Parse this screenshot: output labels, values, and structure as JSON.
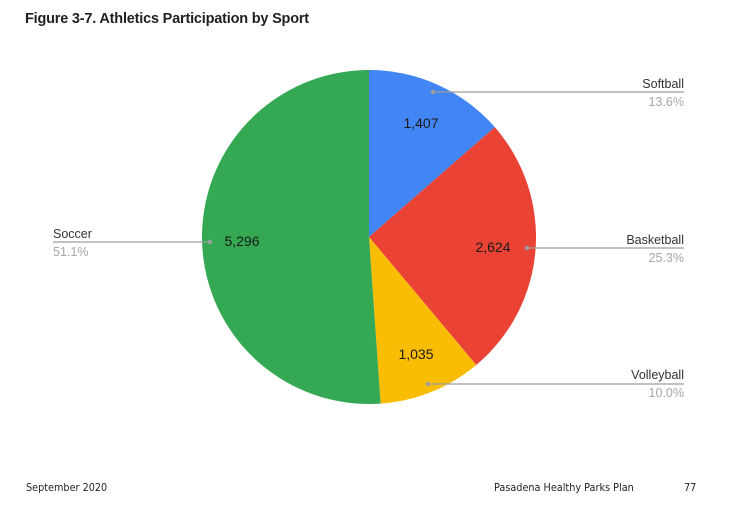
{
  "title": "Figure 3-7. Athletics Participation by Sport",
  "footer": {
    "date": "September 2020",
    "document": "Pasadena Healthy Parks Plan",
    "page": "77"
  },
  "chart_data": {
    "type": "pie",
    "title": "Figure 3-7. Athletics Participation by Sport",
    "categories": [
      "Softball",
      "Basketball",
      "Volleyball",
      "Soccer"
    ],
    "values": [
      1407,
      2624,
      1035,
      5296
    ],
    "value_labels": [
      "1,407",
      "2,624",
      "1,035",
      "5,296"
    ],
    "percentages": [
      "13.6%",
      "25.3%",
      "10.0%",
      "51.1%"
    ],
    "colors": [
      "#4285f4",
      "#ea4335",
      "#fbbc04",
      "#34a853"
    ],
    "start_angle": "12 o'clock, clockwise",
    "legend_position": "labeled callouts"
  }
}
